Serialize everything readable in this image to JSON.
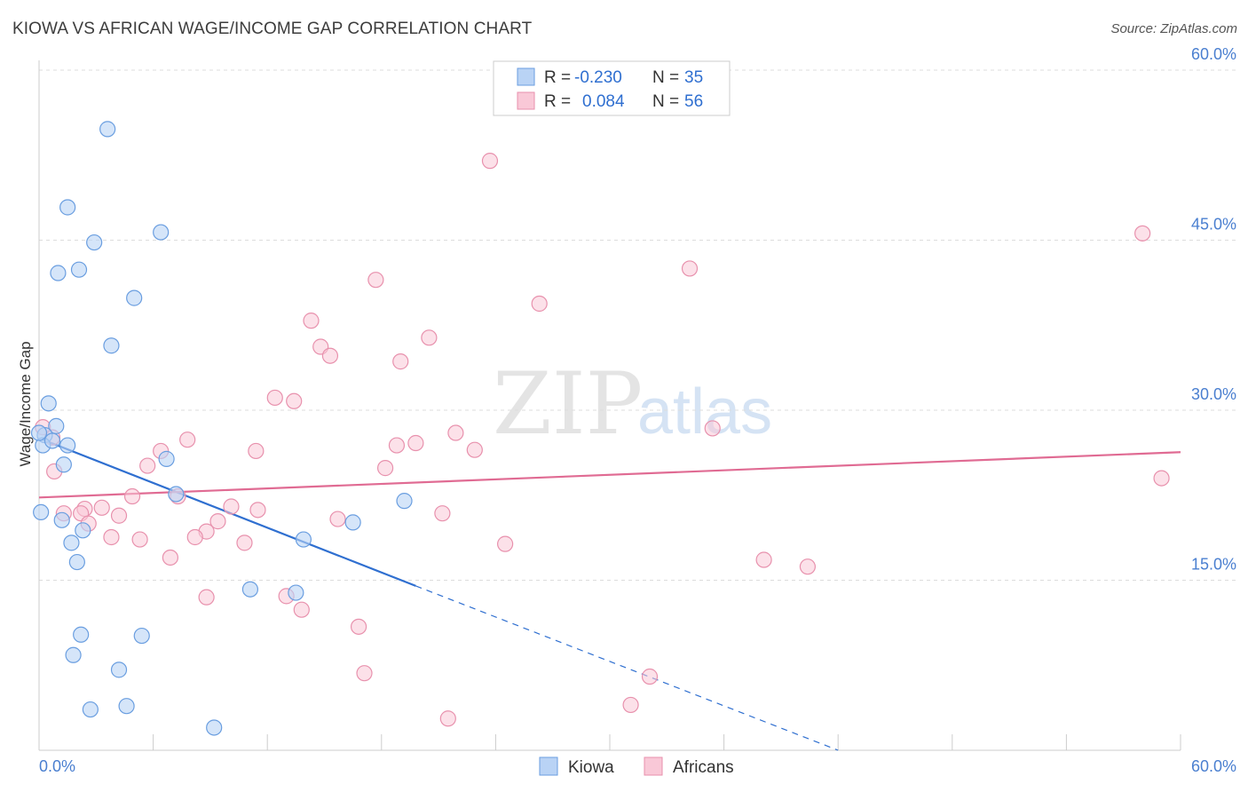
{
  "header": {
    "title": "KIOWA VS AFRICAN WAGE/INCOME GAP CORRELATION CHART",
    "source": "Source: ZipAtlas.com"
  },
  "watermark": {
    "zip": "ZIP",
    "atlas": "atlas"
  },
  "legend": {
    "rows": [
      {
        "r_label": "R =",
        "r_value": "-0.230",
        "n_label": "N =",
        "n_value": "35"
      },
      {
        "r_label": "R =",
        "r_value": "0.084",
        "n_label": "N =",
        "n_value": "56"
      }
    ]
  },
  "bottom_legend": {
    "kiowa": "Kiowa",
    "africans": "Africans"
  },
  "colors": {
    "kiowa_fill": "#b9d3f5",
    "kiowa_stroke": "#6a9ee0",
    "kiowa_line": "#2f6fd0",
    "africans_fill": "#f9c8d7",
    "africans_stroke": "#e891ad",
    "africans_line": "#e06b93",
    "grid": "#dddddd",
    "axis_label": "#4a7fd0"
  },
  "chart_data": {
    "type": "scatter",
    "title": "KIOWA VS AFRICAN WAGE/INCOME GAP CORRELATION CHART",
    "xlabel": "",
    "ylabel": "Wage/Income Gap",
    "xlim": [
      0,
      60
    ],
    "ylim": [
      0,
      60
    ],
    "x_tick_labels": [
      "0.0%",
      "60.0%"
    ],
    "y_ticks": [
      15,
      30,
      45,
      60
    ],
    "y_tick_labels": [
      "15.0%",
      "30.0%",
      "45.0%",
      "60.0%"
    ],
    "grid": true,
    "series": [
      {
        "name": "Kiowa",
        "points": [
          [
            3.6,
            54.8
          ],
          [
            1.5,
            47.9
          ],
          [
            2.9,
            44.8
          ],
          [
            6.4,
            45.7
          ],
          [
            2.1,
            42.4
          ],
          [
            1.0,
            42.1
          ],
          [
            5.0,
            39.9
          ],
          [
            3.8,
            35.7
          ],
          [
            0.5,
            30.6
          ],
          [
            0.9,
            28.6
          ],
          [
            0.3,
            27.8
          ],
          [
            0.2,
            26.9
          ],
          [
            0.7,
            27.3
          ],
          [
            1.5,
            26.9
          ],
          [
            1.3,
            25.2
          ],
          [
            6.7,
            25.7
          ],
          [
            7.2,
            22.6
          ],
          [
            0.1,
            21.0
          ],
          [
            1.2,
            20.3
          ],
          [
            2.3,
            19.4
          ],
          [
            1.7,
            18.3
          ],
          [
            13.9,
            18.6
          ],
          [
            16.5,
            20.1
          ],
          [
            19.2,
            22.0
          ],
          [
            2.0,
            16.6
          ],
          [
            11.1,
            14.2
          ],
          [
            13.5,
            13.9
          ],
          [
            2.2,
            10.2
          ],
          [
            5.4,
            10.1
          ],
          [
            1.8,
            8.4
          ],
          [
            4.2,
            7.1
          ],
          [
            2.7,
            3.6
          ],
          [
            4.6,
            3.9
          ],
          [
            9.2,
            2.0
          ],
          [
            0.0,
            28.0
          ]
        ],
        "trend": {
          "x0": 0.2,
          "y0": 27.4,
          "x1": 19.8,
          "y1": 14.5,
          "extend_x": 42.0,
          "extend_y": 0.0
        }
      },
      {
        "name": "Africans",
        "points": [
          [
            23.7,
            52.0
          ],
          [
            58.0,
            45.6
          ],
          [
            34.2,
            42.5
          ],
          [
            17.7,
            41.5
          ],
          [
            26.3,
            39.4
          ],
          [
            14.3,
            37.9
          ],
          [
            20.5,
            36.4
          ],
          [
            14.8,
            35.6
          ],
          [
            15.3,
            34.8
          ],
          [
            19.0,
            34.3
          ],
          [
            12.4,
            31.1
          ],
          [
            13.4,
            30.8
          ],
          [
            35.4,
            28.4
          ],
          [
            21.9,
            28.0
          ],
          [
            7.8,
            27.4
          ],
          [
            18.8,
            26.9
          ],
          [
            19.8,
            27.1
          ],
          [
            6.4,
            26.4
          ],
          [
            11.4,
            26.4
          ],
          [
            22.9,
            26.5
          ],
          [
            0.2,
            28.5
          ],
          [
            0.7,
            27.6
          ],
          [
            5.7,
            25.1
          ],
          [
            18.2,
            24.9
          ],
          [
            59.0,
            24.0
          ],
          [
            0.8,
            24.6
          ],
          [
            7.3,
            22.4
          ],
          [
            4.9,
            22.4
          ],
          [
            10.1,
            21.5
          ],
          [
            11.5,
            21.2
          ],
          [
            3.3,
            21.4
          ],
          [
            2.4,
            21.3
          ],
          [
            2.2,
            20.9
          ],
          [
            1.3,
            20.9
          ],
          [
            21.2,
            20.9
          ],
          [
            4.2,
            20.7
          ],
          [
            15.7,
            20.4
          ],
          [
            2.6,
            20.0
          ],
          [
            9.4,
            20.2
          ],
          [
            8.8,
            19.3
          ],
          [
            3.8,
            18.8
          ],
          [
            5.3,
            18.6
          ],
          [
            8.2,
            18.8
          ],
          [
            10.8,
            18.3
          ],
          [
            24.5,
            18.2
          ],
          [
            38.1,
            16.8
          ],
          [
            40.4,
            16.2
          ],
          [
            6.9,
            17.0
          ],
          [
            8.8,
            13.5
          ],
          [
            13.0,
            13.6
          ],
          [
            13.8,
            12.4
          ],
          [
            16.8,
            10.9
          ],
          [
            17.1,
            6.8
          ],
          [
            32.1,
            6.5
          ],
          [
            31.1,
            4.0
          ],
          [
            21.5,
            2.8
          ]
        ],
        "trend": {
          "x0": 0.0,
          "y0": 22.3,
          "x1": 60.0,
          "y1": 26.3
        }
      }
    ]
  }
}
